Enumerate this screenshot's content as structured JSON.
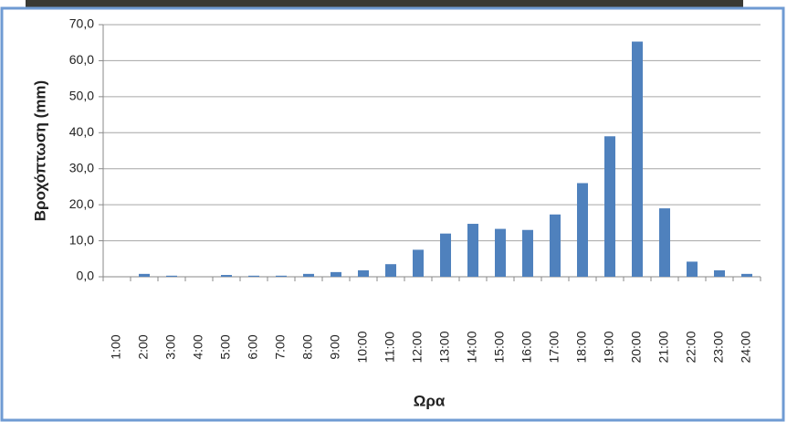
{
  "chart_data": {
    "type": "bar",
    "x_label": "Ωρα",
    "y_label": "Βροχόπτωση (mm)",
    "categories": [
      "1:00",
      "2:00",
      "3:00",
      "4:00",
      "5:00",
      "6:00",
      "7:00",
      "8:00",
      "9:00",
      "10:00",
      "11:00",
      "12:00",
      "13:00",
      "14:00",
      "15:00",
      "16:00",
      "17:00",
      "18:00",
      "19:00",
      "20:00",
      "21:00",
      "22:00",
      "23:00",
      "24:00"
    ],
    "values": [
      0,
      0.8,
      0.3,
      0,
      0.5,
      0.3,
      0.3,
      0.8,
      1.3,
      1.8,
      3.5,
      7.5,
      12,
      14.7,
      13.3,
      13,
      17.3,
      26,
      39,
      65.3,
      19,
      4.2,
      1.8,
      0.8
    ],
    "color": "#4f81bd",
    "ylim": [
      0,
      70
    ],
    "yticks": [
      {
        "value": 0,
        "label": "0,0"
      },
      {
        "value": 10,
        "label": "10,0"
      },
      {
        "value": 20,
        "label": "20,0"
      },
      {
        "value": 30,
        "label": "30,0"
      },
      {
        "value": 40,
        "label": "40,0"
      },
      {
        "value": 50,
        "label": "50,0"
      },
      {
        "value": 60,
        "label": "60,0"
      },
      {
        "value": 70,
        "label": "70,0"
      }
    ],
    "grid": true
  }
}
